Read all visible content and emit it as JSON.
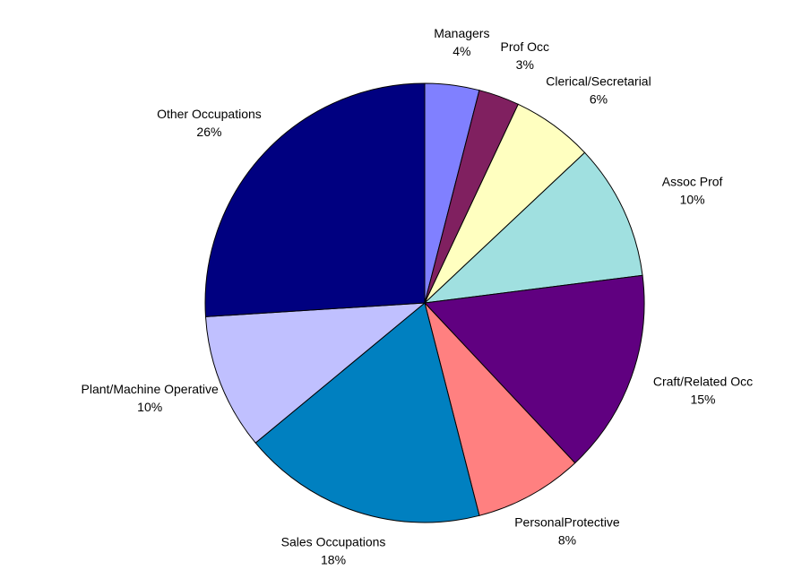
{
  "chart_data": {
    "type": "pie",
    "categories": [
      "Managers",
      "Prof Occ",
      "Clerical/Secretarial",
      "Assoc Prof",
      "Craft/Related Occ",
      "PersonalProtective",
      "Sales Occupations",
      "Plant/Machine Operative",
      "Other Occupations"
    ],
    "values": [
      4,
      3,
      6,
      10,
      15,
      8,
      18,
      10,
      26
    ],
    "value_labels": [
      "4%",
      "3%",
      "6%",
      "10%",
      "15%",
      "8%",
      "18%",
      "10%",
      "26%"
    ],
    "colors": [
      "#8080ff",
      "#802060",
      "#ffffc0",
      "#a0e0e0",
      "#600080",
      "#ff8080",
      "#0080c0",
      "#c0c0ff",
      "#000080"
    ]
  }
}
